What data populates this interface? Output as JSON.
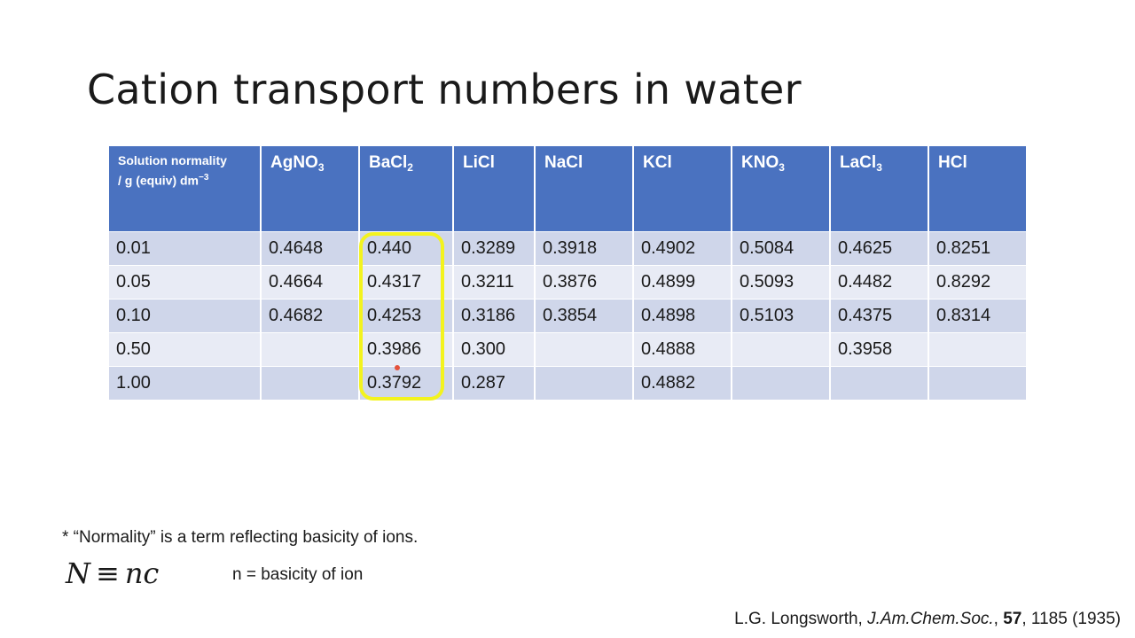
{
  "slide": {
    "title": "Cation transport numbers in water",
    "table": {
      "header_first_line1": "Solution normality",
      "header_first_line2": "/ g (equiv) dm",
      "header_first_exp": "−3",
      "columns": [
        {
          "base": "AgNO",
          "sub": "3"
        },
        {
          "base": "BaCl",
          "sub": "2"
        },
        {
          "base": "LiCl",
          "sub": ""
        },
        {
          "base": "NaCl",
          "sub": ""
        },
        {
          "base": "KCl",
          "sub": ""
        },
        {
          "base": "KNO",
          "sub": "3"
        },
        {
          "base": "LaCl",
          "sub": "3"
        },
        {
          "base": "HCl",
          "sub": ""
        }
      ],
      "rows": [
        [
          "0.01",
          "0.4648",
          "0.440",
          "0.3289",
          "0.3918",
          "0.4902",
          "0.5084",
          "0.4625",
          "0.8251"
        ],
        [
          "0.05",
          "0.4664",
          "0.4317",
          "0.3211",
          "0.3876",
          "0.4899",
          "0.5093",
          "0.4482",
          "0.8292"
        ],
        [
          "0.10",
          "0.4682",
          "0.4253",
          "0.3186",
          "0.3854",
          "0.4898",
          "0.5103",
          "0.4375",
          "0.8314"
        ],
        [
          "0.50",
          "",
          "0.3986",
          "0.300",
          "",
          "0.4888",
          "",
          "0.3958",
          ""
        ],
        [
          "1.00",
          "",
          "0.3792",
          "0.287",
          "",
          "0.4882",
          "",
          "",
          ""
        ]
      ]
    },
    "footnote": "* “Normality” is a term reflecting basicity of ions.",
    "formula": {
      "lhs": "N",
      "op": "≡",
      "rhs": "nc"
    },
    "formula_note": "n = basicity of ion",
    "citation": {
      "authors": "L.G. Longsworth,",
      "journal": "J.Am.Chem.Soc.",
      "volume": "57",
      "rest": ", 1185 (1935)"
    }
  },
  "colors": {
    "header_bg": "#4a72c0",
    "row_dark": "#cfd6ea",
    "row_light": "#e8ebf5",
    "highlight": "#f3f31e"
  }
}
